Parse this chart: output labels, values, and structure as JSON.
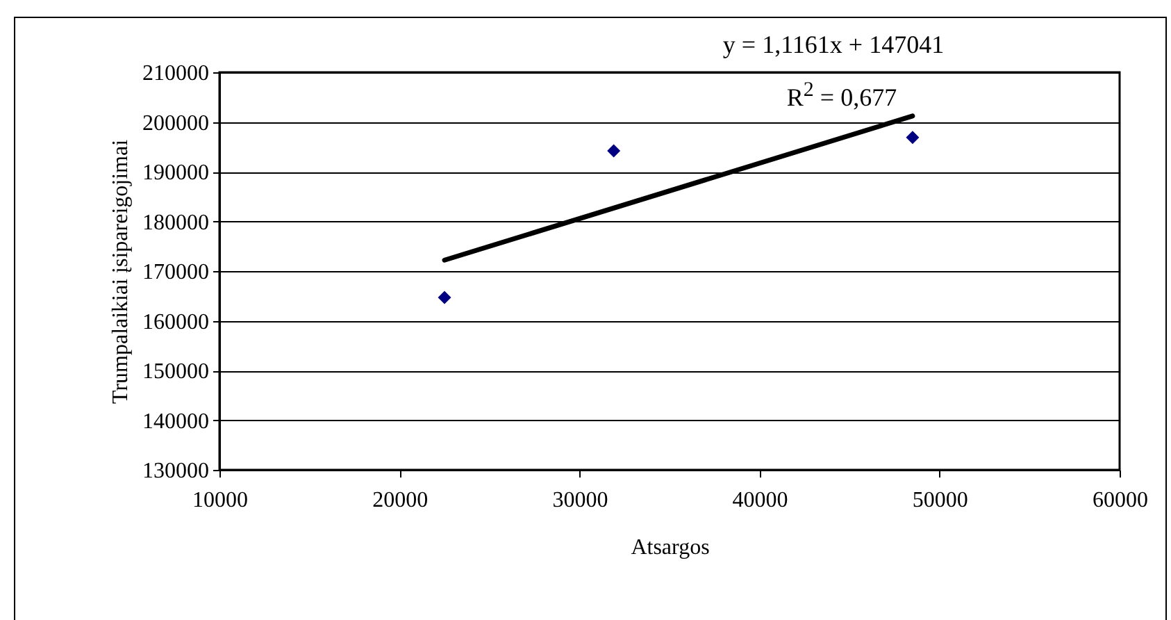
{
  "chart_data": {
    "type": "scatter",
    "xlabel": "Atsargos",
    "ylabel": "Trumpalaikiai įsipareigojimai",
    "annotations": [
      "y = 1,1161x + 147041",
      "R$^{2}$ = 0,677"
    ],
    "series": [
      {
        "color": "#000080",
        "marker": "diamond",
        "x": [
          22500,
          31900,
          48500
        ],
        "values": [
          164700,
          194200,
          196900
        ]
      },
      {
        "type": "line",
        "color": "#000000",
        "line_style": "solid",
        "x": [
          22500,
          48500
        ],
        "values": [
          172200,
          201200
        ]
      }
    ],
    "xlim": [
      10000,
      60000
    ],
    "xticks": [
      10000,
      20000,
      30000,
      40000,
      50000,
      60000
    ],
    "ylim": [
      130000,
      210000
    ],
    "yticks": [
      130000,
      140000,
      150000,
      160000,
      170000,
      180000,
      190000,
      200000,
      210000
    ],
    "grid": "y"
  }
}
